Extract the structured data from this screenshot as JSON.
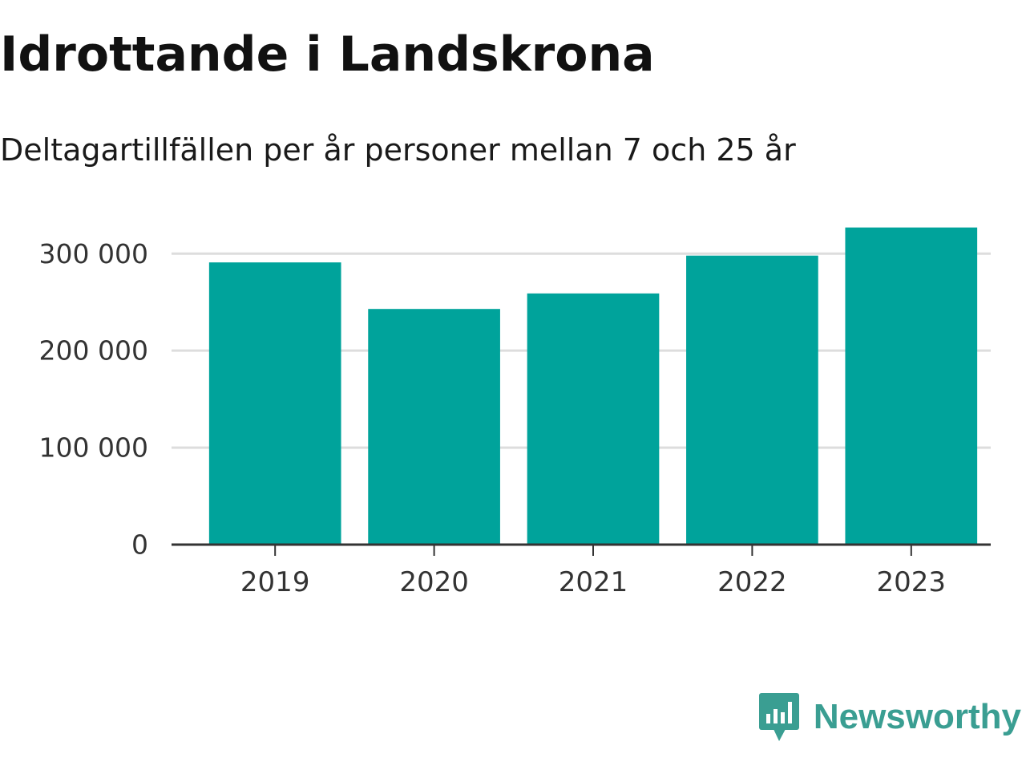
{
  "chart_data": {
    "type": "bar",
    "title": "Idrottande i Landskrona",
    "subtitle": "Deltagartillfällen per år personer mellan 7 och 25 år",
    "categories": [
      "2019",
      "2020",
      "2021",
      "2022",
      "2023"
    ],
    "values": [
      291000,
      243000,
      259000,
      298000,
      327000
    ],
    "xlabel": "",
    "ylabel": "",
    "ylim": [
      0,
      330000
    ],
    "yticks": [
      0,
      100000,
      200000,
      300000
    ],
    "ytick_labels": [
      "0",
      "100 000",
      "200 000",
      "300 000"
    ],
    "grid": true,
    "legend": "none",
    "colors": {
      "bar": "#00a39b",
      "grid": "#dddddd",
      "axis": "#333333"
    }
  },
  "branding": {
    "name": "Newsworthy",
    "logo_icon": "newsworthy-logo-icon",
    "color": "#3a9e92"
  }
}
